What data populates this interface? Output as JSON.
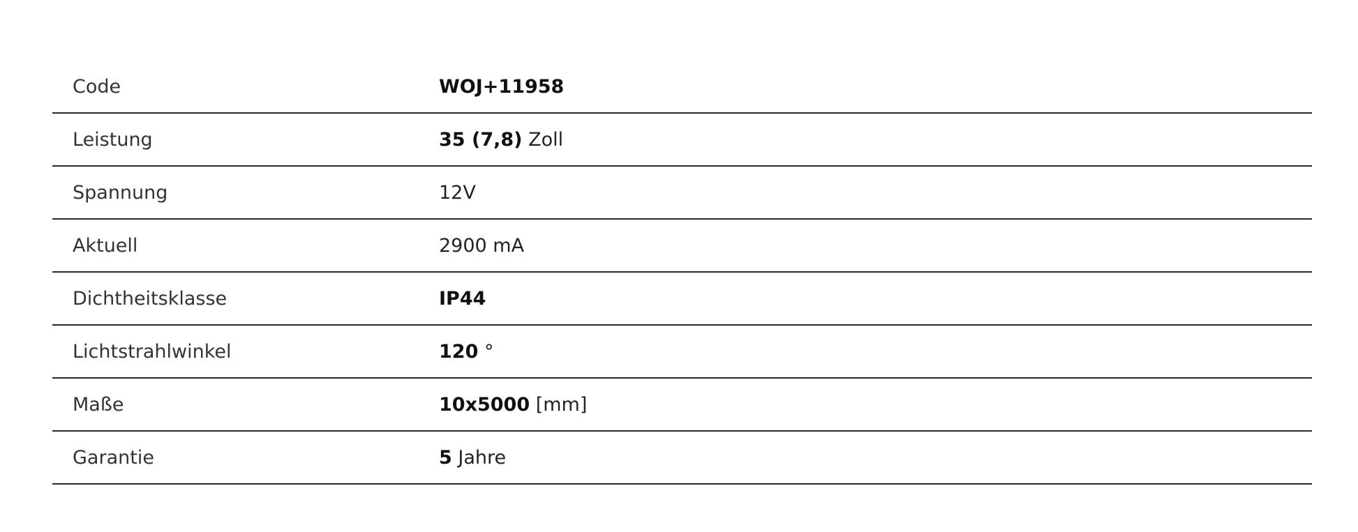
{
  "rows": [
    {
      "label": "Code",
      "bold": "WOJ+11958",
      "rest": ""
    },
    {
      "label": "Leistung",
      "bold": "35 (7,8)",
      "rest": " Zoll"
    },
    {
      "label": "Spannung",
      "bold": "",
      "rest": "12V"
    },
    {
      "label": "Aktuell",
      "bold": "",
      "rest": "2900 mA"
    },
    {
      "label": "Dichtheitsklasse",
      "bold": "IP44",
      "rest": ""
    },
    {
      "label": "Lichtstrahlwinkel",
      "bold": "120",
      "rest": " °"
    },
    {
      "label": "Maße",
      "bold": "10x5000",
      "rest": " [mm]"
    },
    {
      "label": "Garantie",
      "bold": "5",
      "rest": " Jahre"
    }
  ]
}
